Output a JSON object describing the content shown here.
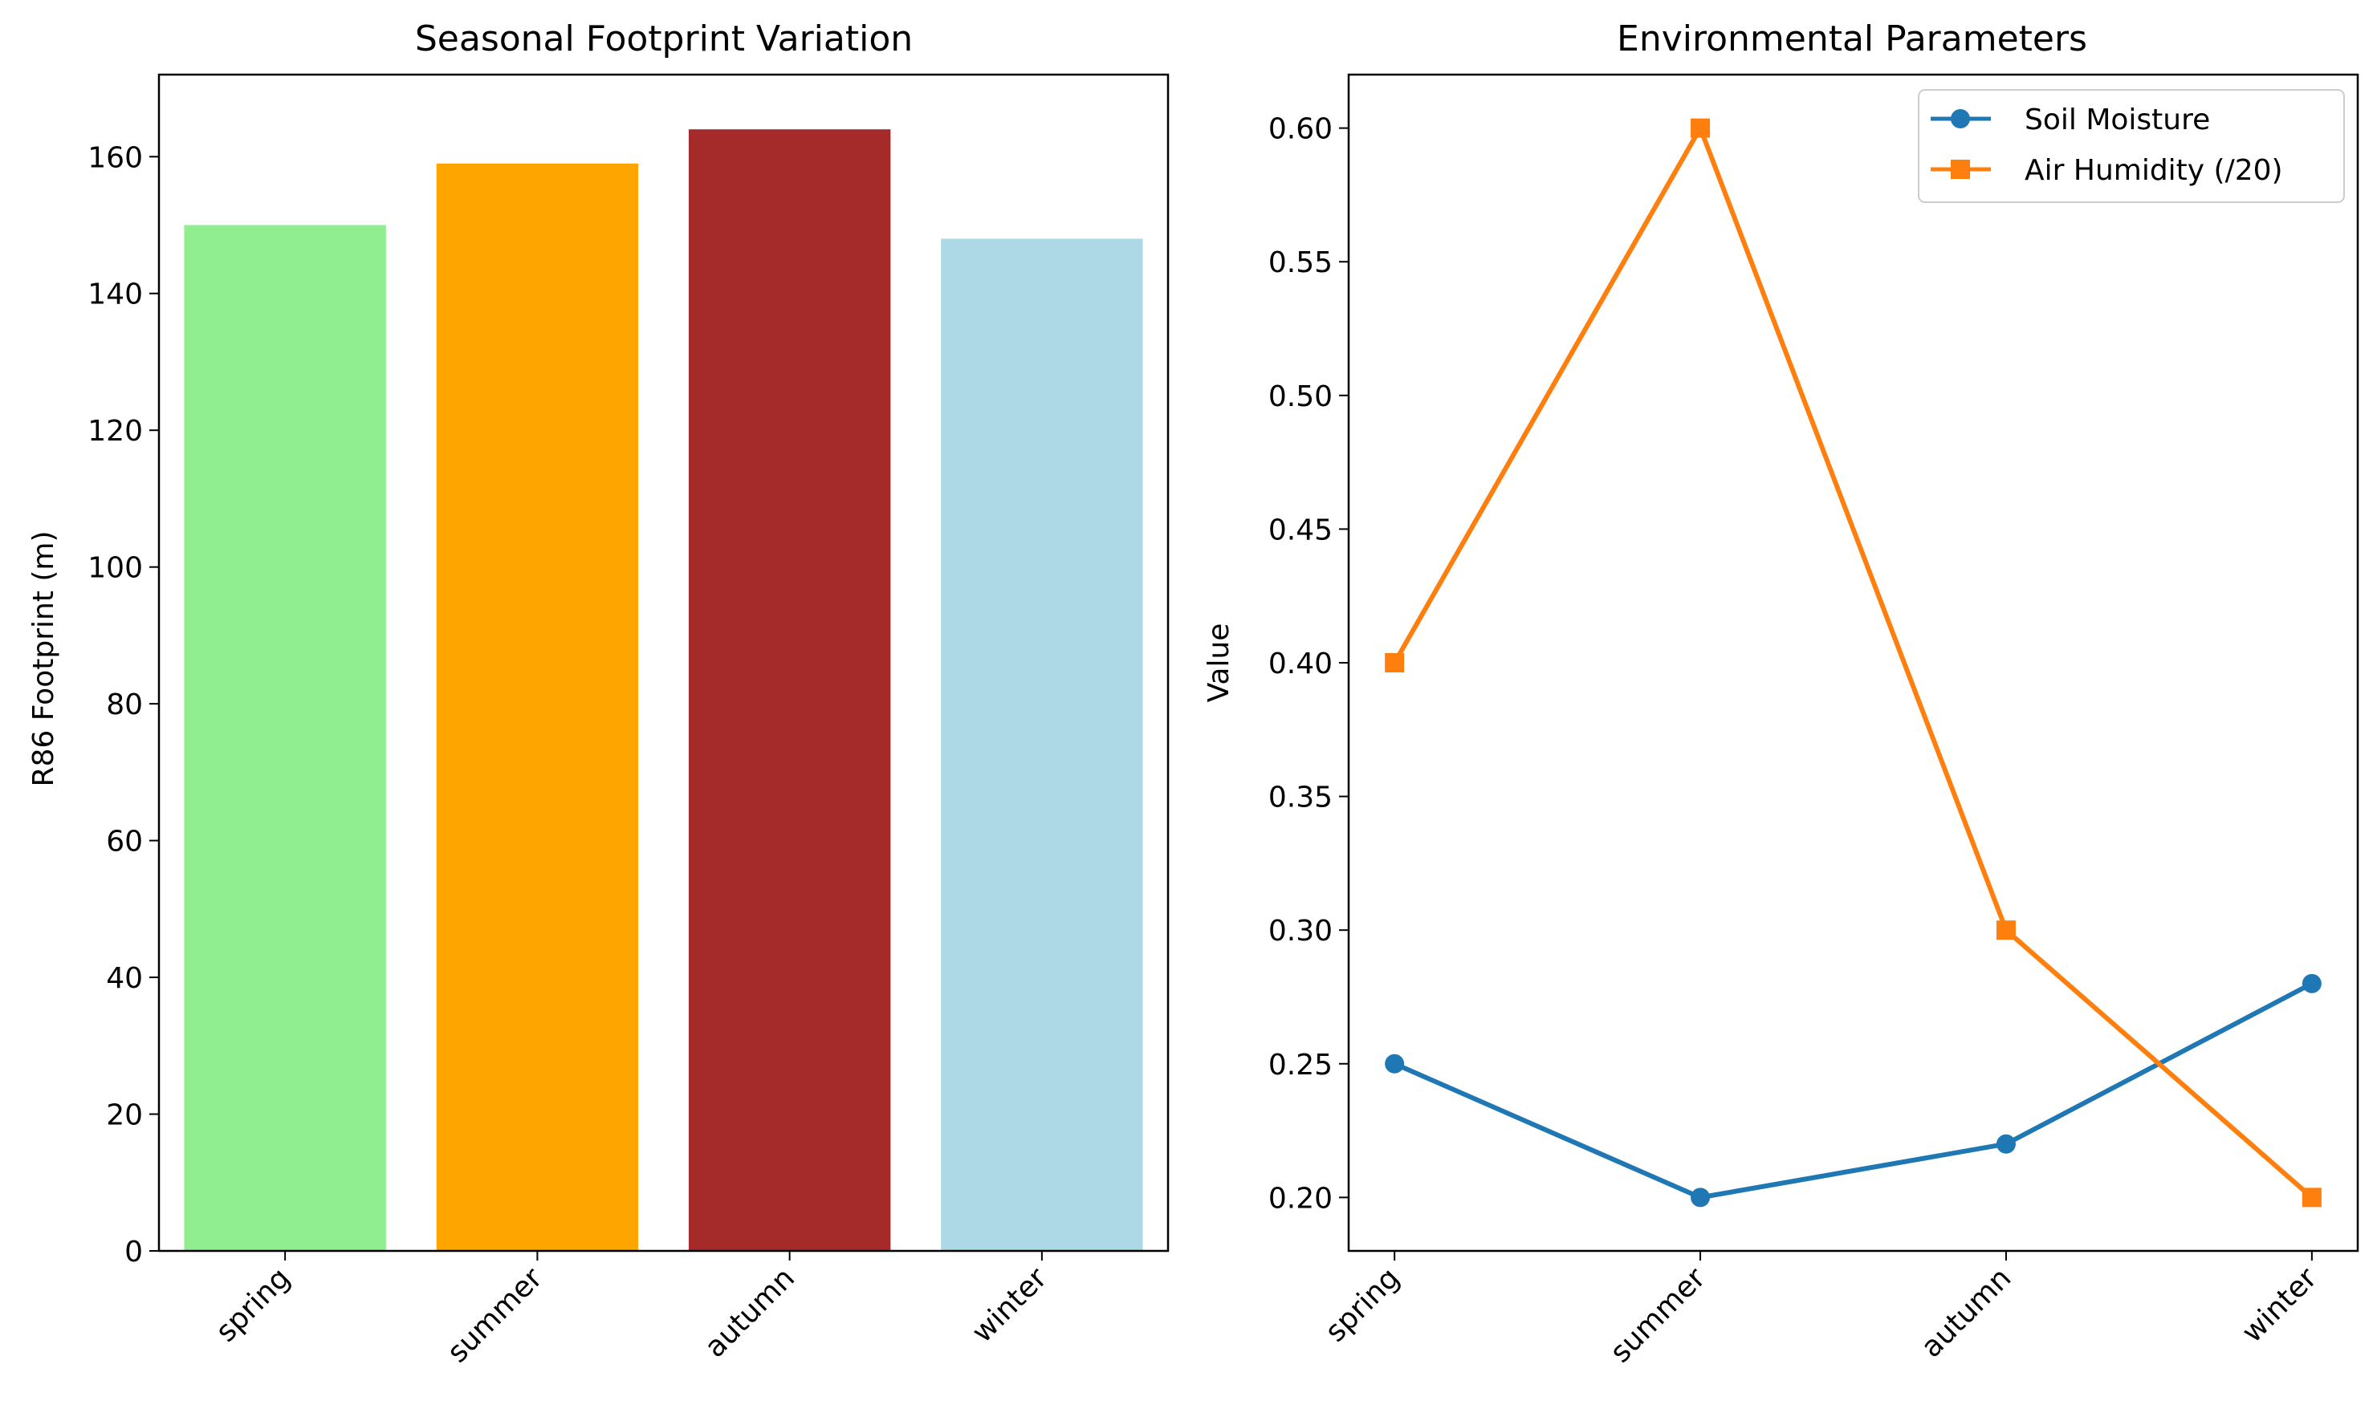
{
  "chart_data": [
    {
      "type": "bar",
      "title": "Seasonal Footprint Variation",
      "xlabel": "",
      "ylabel": "R86 Footprint (m)",
      "categories": [
        "spring",
        "summer",
        "autumn",
        "winter"
      ],
      "values": [
        150,
        159,
        164,
        148
      ],
      "colors": [
        "#90ee90",
        "#ffa500",
        "#a52a2a",
        "#add8e6"
      ],
      "ylim": [
        0,
        172
      ],
      "yticks": [
        0,
        20,
        40,
        60,
        80,
        100,
        120,
        140,
        160
      ],
      "grid": false
    },
    {
      "type": "line",
      "title": "Environmental Parameters",
      "xlabel": "",
      "ylabel": "Value",
      "categories": [
        "spring",
        "summer",
        "autumn",
        "winter"
      ],
      "series": [
        {
          "name": "Soil Moisture",
          "values": [
            0.25,
            0.2,
            0.22,
            0.28
          ],
          "color": "#1f77b4",
          "marker": "circle"
        },
        {
          "name": "Air Humidity (/20)",
          "values": [
            0.4,
            0.6,
            0.3,
            0.2
          ],
          "color": "#ff7f0e",
          "marker": "square"
        }
      ],
      "ylim": [
        0.18,
        0.62
      ],
      "yticks": [
        "0.20",
        "0.25",
        "0.30",
        "0.35",
        "0.40",
        "0.45",
        "0.50",
        "0.55",
        "0.60"
      ],
      "legend_position": "top-right",
      "grid": false
    }
  ]
}
